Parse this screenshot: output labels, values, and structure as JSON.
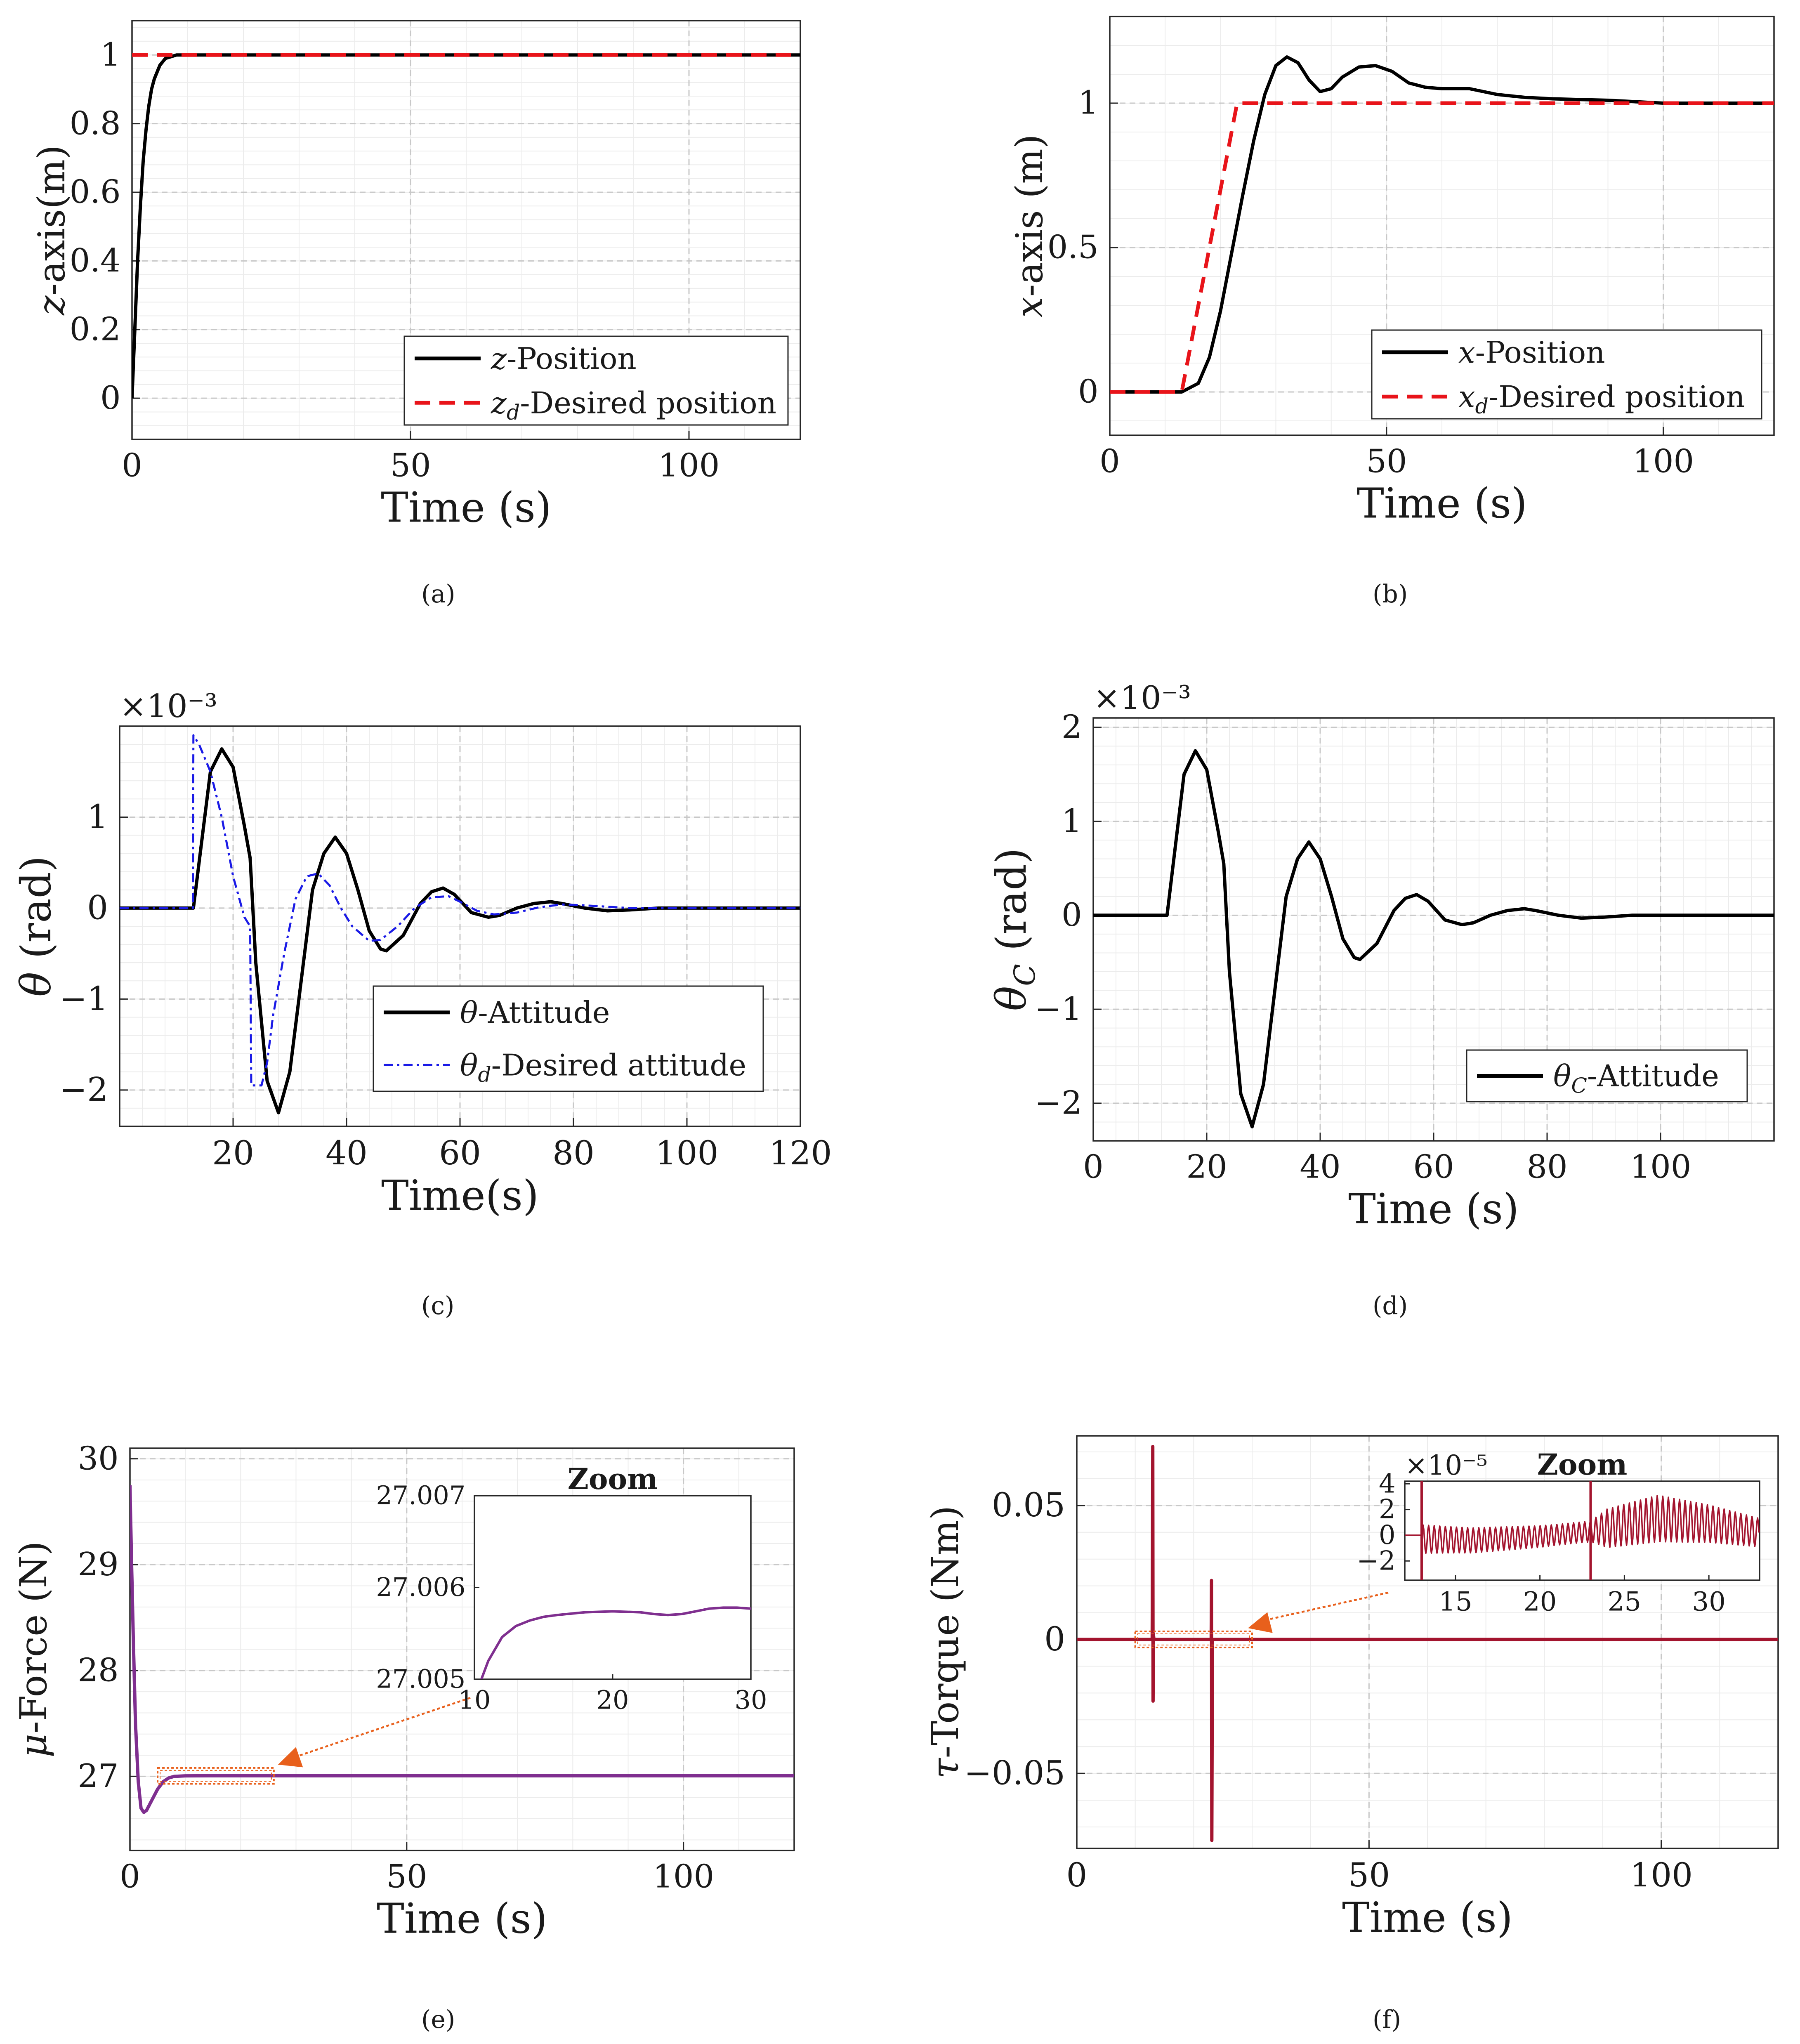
{
  "figure": {
    "panel_labels": [
      "(a)",
      "(b)",
      "(c)",
      "(d)",
      "(e)",
      "(f)"
    ],
    "colors": {
      "black": "#000000",
      "red": "#e8141a",
      "blue": "#1a1ae6",
      "purple": "#7f2f8f",
      "maroon": "#a3142e",
      "orange": "#e8601c",
      "grid": "#c8c8c8"
    }
  },
  "chart_data": [
    {
      "id": "a",
      "type": "line",
      "title": "",
      "xlabel": "Time (s)",
      "ylabel": "z-axis(m)",
      "xlim": [
        0,
        120
      ],
      "ylim": [
        -0.12,
        1.1
      ],
      "xticks": [
        0,
        50,
        100
      ],
      "xtick_labels": [
        "0",
        "50",
        "100"
      ],
      "yticks": [
        0,
        0.2,
        0.4,
        0.6,
        0.8,
        1
      ],
      "ytick_labels": [
        "0",
        "0.2",
        "0.4",
        "0.6",
        "0.8",
        "1"
      ],
      "grid": true,
      "legend_position": "bottom-right",
      "series": [
        {
          "name": "z-Position",
          "style": "solid",
          "color": "#000000",
          "x": [
            0,
            0.5,
            1,
            1.5,
            2,
            2.5,
            3,
            3.5,
            4,
            5,
            6,
            7,
            8,
            10,
            15,
            30,
            60,
            90,
            120
          ],
          "y": [
            0,
            0.2,
            0.4,
            0.56,
            0.69,
            0.78,
            0.85,
            0.9,
            0.93,
            0.97,
            0.99,
            0.995,
            1,
            1,
            1,
            1,
            1,
            1,
            1
          ]
        },
        {
          "name": "z_d-Desired position",
          "style": "dashed",
          "color": "#e8141a",
          "x": [
            0,
            120
          ],
          "y": [
            1,
            1
          ]
        }
      ]
    },
    {
      "id": "b",
      "type": "line",
      "title": "",
      "xlabel": "Time (s)",
      "ylabel": "x-axis (m)",
      "xlim": [
        0,
        120
      ],
      "ylim": [
        -0.15,
        1.3
      ],
      "xticks": [
        0,
        50,
        100
      ],
      "xtick_labels": [
        "0",
        "50",
        "100"
      ],
      "yticks": [
        0,
        0.5,
        1
      ],
      "ytick_labels": [
        "0",
        "0.5",
        "1"
      ],
      "grid": true,
      "legend_position": "bottom-right",
      "series": [
        {
          "name": "x-Position",
          "style": "solid",
          "color": "#000000",
          "x": [
            0,
            13,
            16,
            18,
            20,
            22,
            24,
            26,
            28,
            30,
            32,
            34,
            36,
            38,
            40,
            42,
            45,
            48,
            51,
            54,
            57,
            60,
            65,
            70,
            75,
            80,
            90,
            100,
            110,
            120
          ],
          "y": [
            0,
            0,
            0.03,
            0.12,
            0.28,
            0.48,
            0.68,
            0.87,
            1.03,
            1.13,
            1.16,
            1.14,
            1.08,
            1.04,
            1.05,
            1.09,
            1.125,
            1.13,
            1.11,
            1.07,
            1.055,
            1.05,
            1.05,
            1.03,
            1.02,
            1.015,
            1.01,
            1.0,
            1.0,
            1.0
          ]
        },
        {
          "name": "x_d-Desired position",
          "style": "dashed",
          "color": "#e8141a",
          "x": [
            0,
            13,
            23,
            120
          ],
          "y": [
            0,
            0,
            1,
            1
          ]
        }
      ]
    },
    {
      "id": "c",
      "type": "line",
      "title": "",
      "xlabel": "Time(s)",
      "ylabel": "θ (rad)",
      "exponent_label": "×10⁻³",
      "xlim": [
        0,
        120
      ],
      "ylim": [
        -2.4,
        2.0
      ],
      "xticks": [
        20,
        40,
        60,
        80,
        100,
        120
      ],
      "xtick_labels": [
        "20",
        "40",
        "60",
        "80",
        "100",
        "120"
      ],
      "yticks": [
        -2,
        -1,
        0,
        1
      ],
      "ytick_labels": [
        "−2",
        "−1",
        "0",
        "1"
      ],
      "grid": true,
      "legend_position": "bottom-right",
      "series": [
        {
          "name": "θ-Attitude",
          "style": "solid",
          "color": "#000000",
          "x": [
            0,
            13,
            14,
            16,
            18,
            20,
            22,
            23,
            24,
            26,
            28,
            30,
            32,
            34,
            36,
            38,
            40,
            42,
            44,
            46,
            47,
            50,
            53,
            55,
            57,
            59,
            62,
            65,
            67,
            70,
            73,
            76,
            78,
            82,
            86,
            90,
            95,
            100,
            110,
            120
          ],
          "y": [
            0,
            0,
            0.5,
            1.5,
            1.75,
            1.55,
            0.9,
            0.55,
            -0.6,
            -1.9,
            -2.25,
            -1.8,
            -0.8,
            0.2,
            0.6,
            0.78,
            0.6,
            0.2,
            -0.25,
            -0.45,
            -0.47,
            -0.3,
            0.05,
            0.18,
            0.22,
            0.15,
            -0.05,
            -0.1,
            -0.08,
            0.0,
            0.05,
            0.07,
            0.05,
            0.0,
            -0.03,
            -0.02,
            0.0,
            0.0,
            0.0,
            0.0
          ]
        },
        {
          "name": "θ_d-Desired attitude",
          "style": "dashdot",
          "color": "#1a1ae6",
          "x": [
            0,
            12.9,
            13,
            14,
            16,
            18,
            20,
            22,
            23,
            23.2,
            25,
            26,
            27,
            29,
            31,
            33,
            35,
            37,
            39,
            41,
            44,
            46,
            49,
            52,
            55,
            58,
            60,
            63,
            66,
            70,
            74,
            78,
            82,
            90,
            100,
            120
          ],
          "y": [
            0,
            0,
            1.9,
            1.8,
            1.5,
            1.0,
            0.35,
            -0.1,
            -0.2,
            -1.95,
            -1.95,
            -1.7,
            -1.2,
            -0.5,
            0.1,
            0.35,
            0.38,
            0.25,
            0.0,
            -0.2,
            -0.36,
            -0.35,
            -0.2,
            0.0,
            0.12,
            0.13,
            0.07,
            -0.03,
            -0.07,
            -0.05,
            0.01,
            0.04,
            0.03,
            0.0,
            0.0,
            0.0
          ]
        }
      ]
    },
    {
      "id": "d",
      "type": "line",
      "title": "",
      "xlabel": "Time (s)",
      "ylabel": "θ_C (rad)",
      "exponent_label": "×10⁻³",
      "xlim": [
        0,
        120
      ],
      "ylim": [
        -2.4,
        2.1
      ],
      "xticks": [
        0,
        20,
        40,
        60,
        80,
        100
      ],
      "xtick_labels": [
        "0",
        "20",
        "40",
        "60",
        "80",
        "100"
      ],
      "yticks": [
        -2,
        -1,
        0,
        1,
        2
      ],
      "ytick_labels": [
        "−2",
        "−1",
        "0",
        "1",
        "2"
      ],
      "grid": true,
      "legend_position": "bottom-right",
      "series": [
        {
          "name": "θ_C-Attitude",
          "style": "solid",
          "color": "#000000",
          "x": [
            0,
            13,
            14,
            16,
            18,
            20,
            22,
            23,
            24,
            26,
            28,
            30,
            32,
            34,
            36,
            38,
            40,
            42,
            44,
            46,
            47,
            50,
            53,
            55,
            57,
            59,
            62,
            65,
            67,
            70,
            73,
            76,
            78,
            82,
            86,
            90,
            95,
            100,
            110,
            120
          ],
          "y": [
            0,
            0,
            0.5,
            1.5,
            1.75,
            1.55,
            0.9,
            0.55,
            -0.6,
            -1.9,
            -2.25,
            -1.8,
            -0.8,
            0.2,
            0.6,
            0.78,
            0.6,
            0.2,
            -0.25,
            -0.45,
            -0.47,
            -0.3,
            0.05,
            0.18,
            0.22,
            0.15,
            -0.05,
            -0.1,
            -0.08,
            0.0,
            0.05,
            0.07,
            0.05,
            0.0,
            -0.03,
            -0.02,
            0.0,
            0.0,
            0.0,
            0.0
          ]
        }
      ]
    },
    {
      "id": "e",
      "type": "line",
      "title": "",
      "xlabel": "Time (s)",
      "ylabel": "μ-Force (N)",
      "xlim": [
        0,
        120
      ],
      "ylim": [
        26.3,
        30.1
      ],
      "xticks": [
        0,
        50,
        100
      ],
      "xtick_labels": [
        "0",
        "50",
        "100"
      ],
      "yticks": [
        27,
        28,
        29,
        30
      ],
      "ytick_labels": [
        "27",
        "28",
        "29",
        "30"
      ],
      "grid": true,
      "series": [
        {
          "name": "μ-Force",
          "style": "solid",
          "color": "#7f2f8f",
          "x": [
            0,
            0.3,
            0.6,
            1,
            1.5,
            2,
            2.5,
            3,
            4,
            5,
            6,
            7,
            8,
            10,
            15,
            30,
            60,
            90,
            120
          ],
          "y": [
            29.75,
            29.0,
            28.3,
            27.5,
            26.95,
            26.7,
            26.66,
            26.68,
            26.78,
            26.88,
            26.95,
            26.985,
            27.0,
            27.005,
            27.006,
            27.006,
            27.006,
            27.006,
            27.006
          ]
        }
      ],
      "zoom_box_data": {
        "x": [
          5,
          26
        ],
        "y": [
          26.93,
          27.08
        ]
      },
      "inset": {
        "title": "Zoom",
        "xlim": [
          10,
          30
        ],
        "ylim": [
          27.005,
          27.007
        ],
        "xticks": [
          10,
          20,
          30
        ],
        "xtick_labels": [
          "10",
          "20",
          "30"
        ],
        "yticks": [
          27.005,
          27.006,
          27.007
        ],
        "ytick_labels": [
          "27.005",
          "27.006",
          "27.007"
        ],
        "series": [
          {
            "name": "μ-Force zoom",
            "color": "#7f2f8f",
            "x": [
              10.5,
              11,
              12,
              13,
              14,
              15,
              16,
              18,
              20,
              22,
              23,
              24,
              25,
              26,
              27,
              28,
              29,
              30
            ],
            "y": [
              27.005,
              27.0052,
              27.00546,
              27.00558,
              27.00564,
              27.00568,
              27.0057,
              27.00573,
              27.00574,
              27.00573,
              27.00571,
              27.0057,
              27.00571,
              27.00574,
              27.00577,
              27.00578,
              27.00578,
              27.00577
            ]
          }
        ]
      }
    },
    {
      "id": "f",
      "type": "line",
      "title": "",
      "xlabel": "Time (s)",
      "ylabel": "τ-Torque (Nm)",
      "xlim": [
        0,
        120
      ],
      "ylim": [
        -0.078,
        0.076
      ],
      "xticks": [
        0,
        50,
        100
      ],
      "xtick_labels": [
        "0",
        "50",
        "100"
      ],
      "yticks": [
        -0.05,
        0,
        0.05
      ],
      "ytick_labels": [
        "−0.05",
        "0",
        "0.05"
      ],
      "grid": true,
      "series": [
        {
          "name": "τ-Torque",
          "style": "solid",
          "color": "#a3142e",
          "x": [
            0,
            12.9,
            13,
            13.05,
            13.1,
            13.2,
            23,
            23.05,
            23.1,
            23.2,
            120
          ],
          "y": [
            0,
            0,
            0.072,
            -0.023,
            0.002,
            0,
            0,
            0.022,
            -0.075,
            0,
            0
          ]
        }
      ],
      "zoom_box_data": {
        "x": [
          10,
          30
        ],
        "y": [
          -0.003,
          0.003
        ]
      },
      "inset": {
        "title": "Zoom",
        "exponent_label": "×10⁻⁵",
        "xlim": [
          12,
          33
        ],
        "ylim": [
          -3.5,
          4.2
        ],
        "xticks": [
          15,
          20,
          25,
          30
        ],
        "xtick_labels": [
          "15",
          "20",
          "25",
          "30"
        ],
        "yticks": [
          -2,
          0,
          2,
          4
        ],
        "ytick_labels": [
          "−2",
          "0",
          "2",
          "4"
        ],
        "series": [
          {
            "name": "τ-Torque zoom",
            "color": "#a3142e",
            "envelope_center": [
              [
                13,
                -0.3
              ],
              [
                16,
                -0.4
              ],
              [
                20,
                -0.1
              ],
              [
                23,
                0.3
              ],
              [
                27,
                1.3
              ],
              [
                30,
                0.9
              ],
              [
                33,
                0.2
              ]
            ],
            "envelope_amplitude": [
              [
                13,
                1.1
              ],
              [
                15,
                1.0
              ],
              [
                18,
                0.9
              ],
              [
                21,
                0.8
              ],
              [
                23,
                0.8
              ],
              [
                24,
                1.5
              ],
              [
                27,
                1.8
              ],
              [
                33,
                1.1
              ]
            ],
            "oscillation_period": 0.33,
            "spikes_x": [
              13,
              23
            ]
          }
        ]
      }
    }
  ]
}
